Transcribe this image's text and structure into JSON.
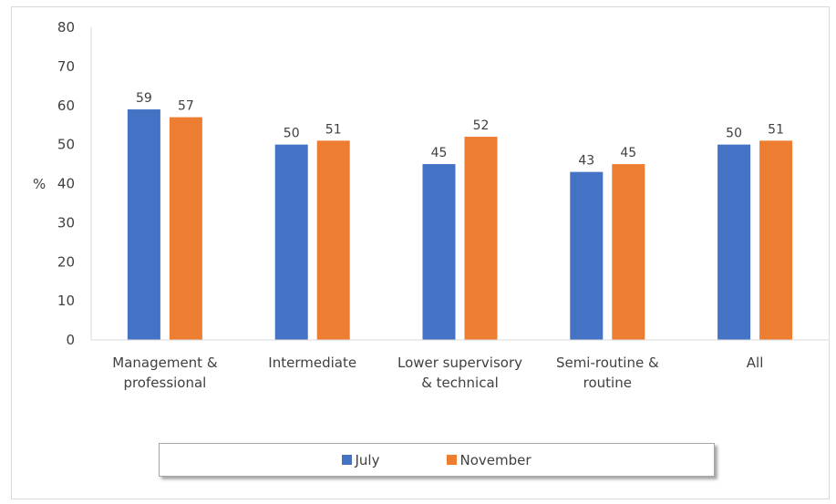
{
  "chart_data": {
    "type": "bar",
    "title": "",
    "xlabel": "",
    "ylabel": "%",
    "ylim": [
      0,
      80
    ],
    "yticks": [
      0,
      10,
      20,
      30,
      40,
      50,
      60,
      70,
      80
    ],
    "grid": false,
    "legend_position": "bottom",
    "categories": [
      [
        "Management &",
        "professional"
      ],
      [
        "Intermediate"
      ],
      [
        "Lower supervisory",
        "& technical"
      ],
      [
        "Semi-routine &",
        "routine"
      ],
      [
        "All"
      ]
    ],
    "series": [
      {
        "name": "July",
        "color": "#4472c4",
        "values": [
          59,
          50,
          45,
          43,
          50
        ]
      },
      {
        "name": "November",
        "color": "#ed7d31",
        "values": [
          57,
          51,
          52,
          45,
          51
        ]
      }
    ]
  }
}
